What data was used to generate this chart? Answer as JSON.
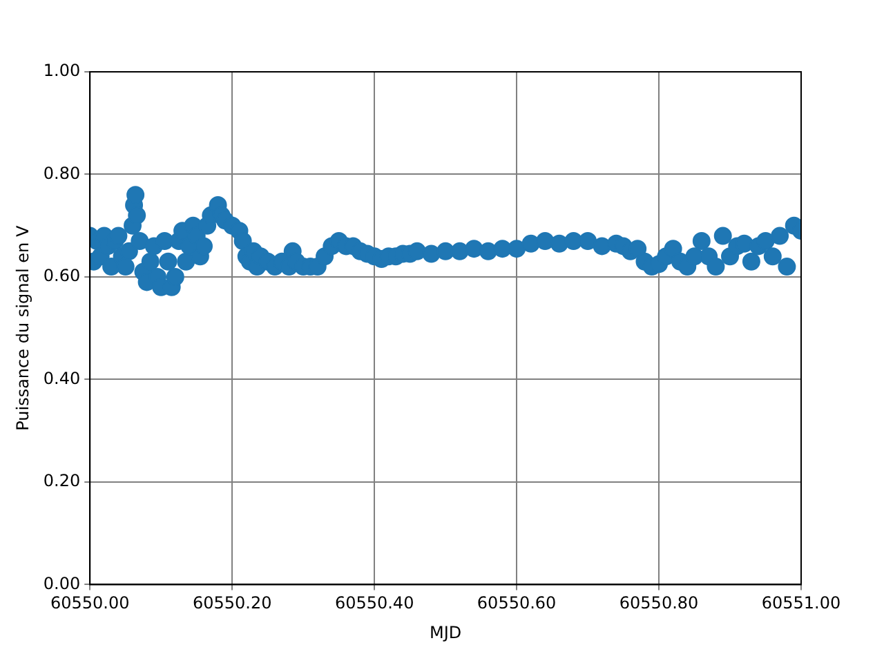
{
  "chart_data": {
    "type": "scatter",
    "xlabel": "MJD",
    "ylabel": "Puissance du signal en V",
    "grid": true,
    "legend": false,
    "marker": "circle",
    "xlim": [
      60550.0,
      60551.0
    ],
    "xticks": [
      {
        "value": 60550.0,
        "label": "60550.00"
      },
      {
        "value": 60550.2,
        "label": "60550.20"
      },
      {
        "value": 60550.4,
        "label": "60550.40"
      },
      {
        "value": 60550.6,
        "label": "60550.60"
      },
      {
        "value": 60550.8,
        "label": "60550.80"
      },
      {
        "value": 60551.0,
        "label": "60551.00"
      }
    ],
    "ylim": [
      0,
      1
    ],
    "yticks": [
      {
        "value": 0,
        "label": "0.00"
      },
      {
        "value": 0.2,
        "label": "0.20"
      },
      {
        "value": 0.4,
        "label": "0.40"
      },
      {
        "value": 0.6,
        "label": "0.60"
      },
      {
        "value": 0.8,
        "label": "0.80"
      },
      {
        "value": 1,
        "label": "1.00"
      }
    ],
    "series": [
      {
        "color": "#1f77b4",
        "x": [
          60550.0,
          60550.005,
          60550.01,
          60550.015,
          60550.02,
          60550.025,
          60550.03,
          60550.035,
          60550.04,
          60550.045,
          60550.05,
          60550.055,
          60550.06,
          60550.062,
          60550.064,
          60550.066,
          60550.07,
          60550.075,
          60550.08,
          60550.085,
          60550.09,
          60550.095,
          60550.1,
          60550.105,
          60550.11,
          60550.115,
          60550.12,
          60550.125,
          60550.13,
          60550.135,
          60550.14,
          60550.145,
          60550.15,
          60550.155,
          60550.16,
          60550.165,
          60550.17,
          60550.18,
          60550.185,
          60550.19,
          60550.2,
          60550.21,
          60550.215,
          60550.22,
          60550.225,
          60550.23,
          60550.235,
          60550.24,
          60550.25,
          60550.26,
          60550.27,
          60550.28,
          60550.285,
          60550.29,
          60550.3,
          60550.31,
          60550.32,
          60550.33,
          60550.34,
          60550.35,
          60550.36,
          60550.37,
          60550.38,
          60550.39,
          60550.4,
          60550.41,
          60550.42,
          60550.43,
          60550.44,
          60550.45,
          60550.46,
          60550.48,
          60550.5,
          60550.52,
          60550.54,
          60550.56,
          60550.58,
          60550.6,
          60550.62,
          60550.64,
          60550.66,
          60550.68,
          60550.7,
          60550.72,
          60550.74,
          60550.75,
          60550.76,
          60550.77,
          60550.78,
          60550.79,
          60550.8,
          60550.81,
          60550.82,
          60550.83,
          60550.84,
          60550.85,
          60550.86,
          60550.87,
          60550.88,
          60550.89,
          60550.9,
          60550.91,
          60550.92,
          60550.93,
          60550.94,
          60550.95,
          60550.96,
          60550.97,
          60550.98,
          60550.99,
          60551.0
        ],
        "values": [
          0.68,
          0.63,
          0.67,
          0.64,
          0.68,
          0.66,
          0.62,
          0.67,
          0.68,
          0.64,
          0.62,
          0.65,
          0.7,
          0.74,
          0.76,
          0.72,
          0.67,
          0.61,
          0.59,
          0.63,
          0.66,
          0.6,
          0.58,
          0.67,
          0.63,
          0.58,
          0.6,
          0.67,
          0.69,
          0.63,
          0.66,
          0.7,
          0.68,
          0.64,
          0.66,
          0.7,
          0.72,
          0.74,
          0.72,
          0.71,
          0.7,
          0.69,
          0.67,
          0.64,
          0.63,
          0.65,
          0.62,
          0.64,
          0.63,
          0.62,
          0.63,
          0.62,
          0.65,
          0.63,
          0.62,
          0.62,
          0.62,
          0.64,
          0.66,
          0.67,
          0.66,
          0.66,
          0.65,
          0.645,
          0.64,
          0.635,
          0.64,
          0.64,
          0.645,
          0.645,
          0.65,
          0.645,
          0.65,
          0.65,
          0.655,
          0.65,
          0.655,
          0.655,
          0.665,
          0.67,
          0.665,
          0.67,
          0.67,
          0.66,
          0.665,
          0.66,
          0.65,
          0.655,
          0.63,
          0.62,
          0.625,
          0.64,
          0.655,
          0.63,
          0.62,
          0.64,
          0.67,
          0.64,
          0.62,
          0.68,
          0.64,
          0.66,
          0.665,
          0.63,
          0.66,
          0.67,
          0.64,
          0.68,
          0.62,
          0.7,
          0.69
        ]
      }
    ]
  }
}
